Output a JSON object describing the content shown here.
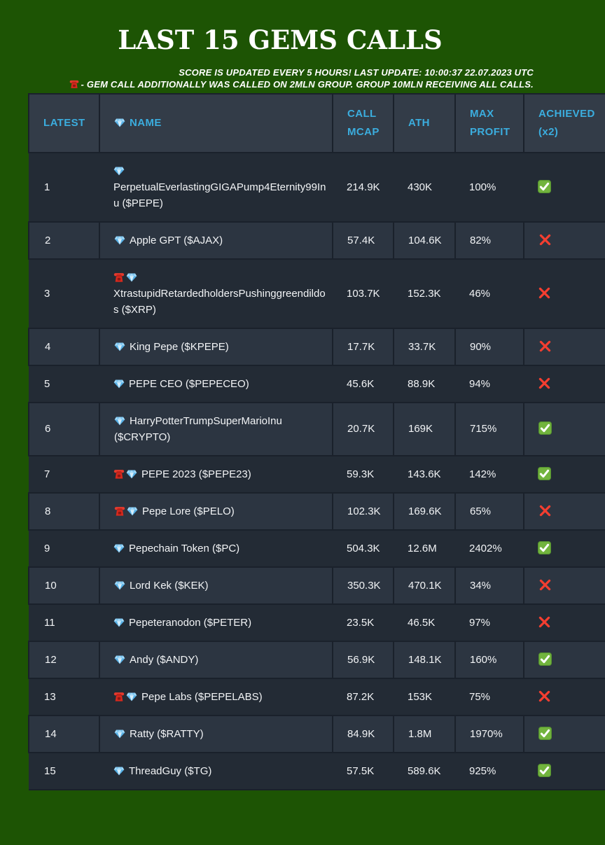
{
  "header": {
    "title": "LAST 15 GEMS CALLS",
    "note_line1": "SCORE IS UPDATED EVERY 5 HOURS! LAST UPDATE: 10:00:37 22.07.2023 UTC",
    "note_line2": "- GEM CALL ADDITIONALLY WAS CALLED ON 2MLN GROUP. GROUP 10MLN RECEIVING ALL CALLS.",
    "note_line2_icon": "red-telephone-icon"
  },
  "colors": {
    "background_green": "#1d5404",
    "header_cell_bg": "#333c48",
    "row_odd_bg": "#232b35",
    "row_even_bg": "#2c3541",
    "cell_border": "#1a212b",
    "header_text_blue": "#3badde",
    "body_text": "#f2f4f6",
    "check_green": "#72b43e",
    "cross_red": "#f43e30",
    "phone_red": "#d7291d",
    "gem_blue": "#58b2e8"
  },
  "table": {
    "columns": [
      {
        "id": "latest",
        "label": "LATEST",
        "lines": [
          "LATEST"
        ]
      },
      {
        "id": "name",
        "label": "NAME",
        "lines": [
          "NAME"
        ],
        "icon": "gem"
      },
      {
        "id": "call_mcap",
        "label": "CALL MCAP",
        "lines": [
          "CALL",
          "MCAP"
        ]
      },
      {
        "id": "ath",
        "label": "ATH",
        "lines": [
          "ATH"
        ]
      },
      {
        "id": "max_profit",
        "label": "MAX PROFIT",
        "lines": [
          "MAX",
          "PROFIT"
        ]
      },
      {
        "id": "achieved",
        "label": "ACHIEVED (x2)",
        "lines": [
          "ACHIEVED",
          "(x2)"
        ]
      }
    ],
    "rows": [
      {
        "latest": "1",
        "icons": [
          "gem"
        ],
        "name": "PerpetualEverlastingGIGAPump4Eternity99Inu ($PEPE)",
        "call_mcap": "214.9K",
        "ath": "430K",
        "max_profit": "100%",
        "achieved_x2": true
      },
      {
        "latest": "2",
        "icons": [
          "gem"
        ],
        "name": "Apple GPT ($AJAX)",
        "call_mcap": "57.4K",
        "ath": "104.6K",
        "max_profit": "82%",
        "achieved_x2": false
      },
      {
        "latest": "3",
        "icons": [
          "phone",
          "gem"
        ],
        "name": "XtrastupidRetardedholdersPushinggreendildos ($XRP)",
        "call_mcap": "103.7K",
        "ath": "152.3K",
        "max_profit": "46%",
        "achieved_x2": false
      },
      {
        "latest": "4",
        "icons": [
          "gem"
        ],
        "name": "King Pepe ($KPEPE)",
        "call_mcap": "17.7K",
        "ath": "33.7K",
        "max_profit": "90%",
        "achieved_x2": false
      },
      {
        "latest": "5",
        "icons": [
          "gem"
        ],
        "name": "PEPE CEO ($PEPECEO)",
        "call_mcap": "45.6K",
        "ath": "88.9K",
        "max_profit": "94%",
        "achieved_x2": false
      },
      {
        "latest": "6",
        "icons": [
          "gem"
        ],
        "name": "HarryPotterTrumpSuperMarioInu ($CRYPTO)",
        "call_mcap": "20.7K",
        "ath": "169K",
        "max_profit": "715%",
        "achieved_x2": true
      },
      {
        "latest": "7",
        "icons": [
          "phone",
          "gem"
        ],
        "name": "PEPE 2023 ($PEPE23)",
        "call_mcap": "59.3K",
        "ath": "143.6K",
        "max_profit": "142%",
        "achieved_x2": true
      },
      {
        "latest": "8",
        "icons": [
          "phone",
          "gem"
        ],
        "name": "Pepe Lore ($PELO)",
        "call_mcap": "102.3K",
        "ath": "169.6K",
        "max_profit": "65%",
        "achieved_x2": false
      },
      {
        "latest": "9",
        "icons": [
          "gem"
        ],
        "name": "Pepechain Token ($PC)",
        "call_mcap": "504.3K",
        "ath": "12.6M",
        "max_profit": "2402%",
        "achieved_x2": true
      },
      {
        "latest": "10",
        "icons": [
          "gem"
        ],
        "name": "Lord Kek ($KEK)",
        "call_mcap": "350.3K",
        "ath": "470.1K",
        "max_profit": "34%",
        "achieved_x2": false
      },
      {
        "latest": "11",
        "icons": [
          "gem"
        ],
        "name": "Pepeteranodon ($PETER)",
        "call_mcap": "23.5K",
        "ath": "46.5K",
        "max_profit": "97%",
        "achieved_x2": false
      },
      {
        "latest": "12",
        "icons": [
          "gem"
        ],
        "name": "Andy ($ANDY)",
        "call_mcap": "56.9K",
        "ath": "148.1K",
        "max_profit": "160%",
        "achieved_x2": true
      },
      {
        "latest": "13",
        "icons": [
          "phone",
          "gem"
        ],
        "name": "Pepe Labs ($PEPELABS)",
        "call_mcap": "87.2K",
        "ath": "153K",
        "max_profit": "75%",
        "achieved_x2": false
      },
      {
        "latest": "14",
        "icons": [
          "gem"
        ],
        "name": "Ratty ($RATTY)",
        "call_mcap": "84.9K",
        "ath": "1.8M",
        "max_profit": "1970%",
        "achieved_x2": true
      },
      {
        "latest": "15",
        "icons": [
          "gem"
        ],
        "name": "ThreadGuy ($TG)",
        "call_mcap": "57.5K",
        "ath": "589.6K",
        "max_profit": "925%",
        "achieved_x2": true
      }
    ]
  }
}
